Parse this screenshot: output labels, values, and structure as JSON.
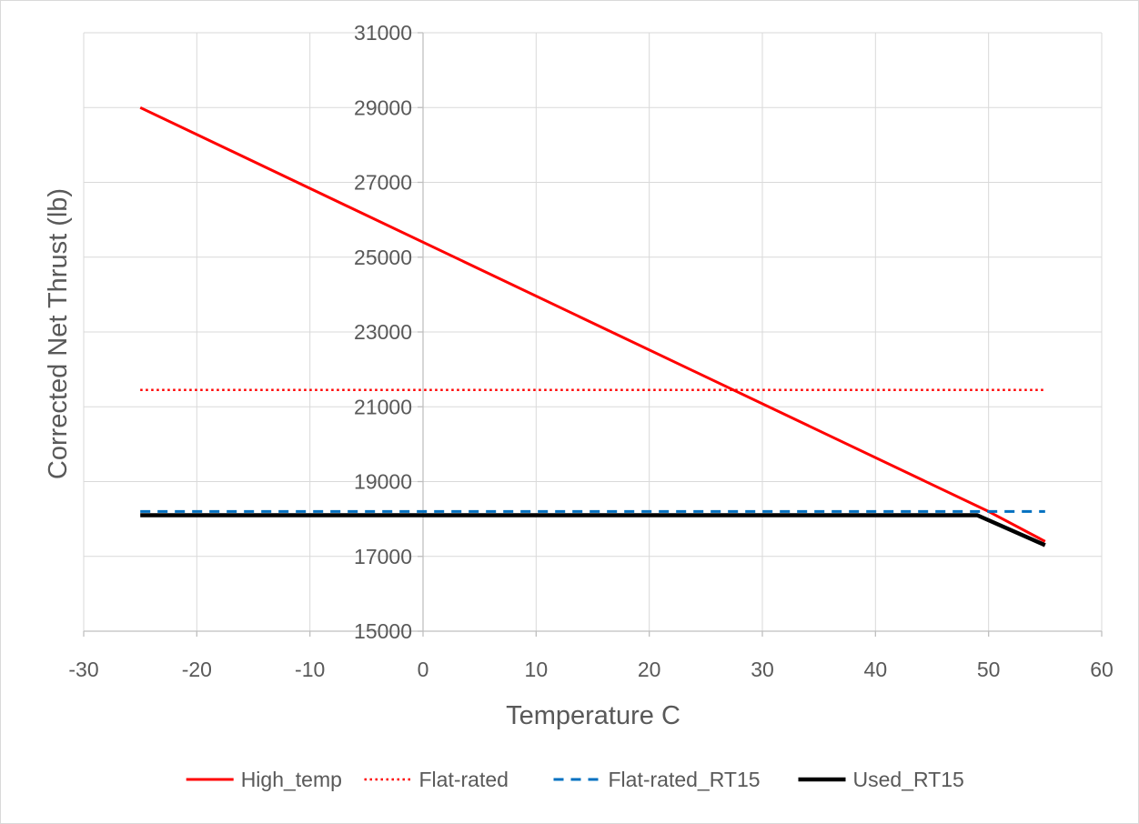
{
  "chart_data": {
    "type": "line",
    "title": "",
    "xlabel": "Temperature C",
    "ylabel": "Corrected Net Thrust (lb)",
    "xlim": [
      -30,
      60
    ],
    "ylim": [
      15000,
      31000
    ],
    "xticks": [
      -30,
      -20,
      -10,
      0,
      10,
      20,
      30,
      40,
      50,
      60
    ],
    "yticks": [
      15000,
      17000,
      19000,
      21000,
      23000,
      25000,
      27000,
      29000,
      31000
    ],
    "grid": true,
    "legend_position": "bottom",
    "series": [
      {
        "name": "High_temp",
        "color": "#ff0000",
        "style": "solid",
        "points": [
          [
            -25,
            29000
          ],
          [
            50,
            18200
          ],
          [
            55,
            17400
          ]
        ]
      },
      {
        "name": "Flat-rated",
        "color": "#ff0000",
        "style": "dotted",
        "points": [
          [
            -25,
            21450
          ],
          [
            55,
            21450
          ]
        ]
      },
      {
        "name": "Flat-rated_RT15",
        "color": "#0070c0",
        "style": "dashed",
        "points": [
          [
            -25,
            18200
          ],
          [
            55,
            18200
          ]
        ]
      },
      {
        "name": "Used_RT15",
        "color": "#000000",
        "style": "solid-thick",
        "points": [
          [
            -25,
            18100
          ],
          [
            49,
            18100
          ],
          [
            55,
            17300
          ]
        ]
      }
    ]
  }
}
